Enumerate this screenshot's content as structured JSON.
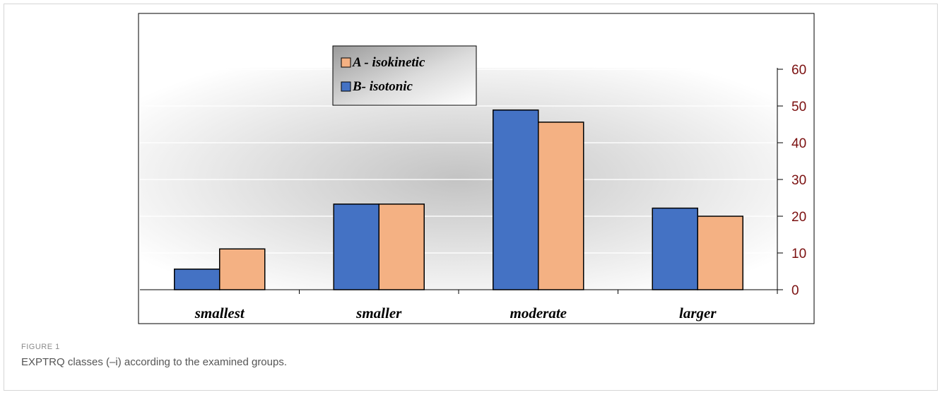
{
  "figure": {
    "label": "FIGURE 1",
    "caption": "EXPTRQ classes (–i) according to the examined groups."
  },
  "chart_data": {
    "type": "bar",
    "categories": [
      "smallest",
      "smaller",
      "moderate",
      "larger"
    ],
    "series": [
      {
        "name": "B- isotonic",
        "values": [
          5.6,
          23.3,
          48.9,
          22.2
        ],
        "color": "#4472c4"
      },
      {
        "name": "A - isokinetic",
        "values": [
          11.1,
          23.3,
          45.6,
          20.0
        ],
        "color": "#f4b183"
      }
    ],
    "legend_order": [
      "A - isokinetic",
      "B- isotonic"
    ],
    "legend_position": "top-left",
    "y_axis_side": "right",
    "ylim": [
      0,
      60
    ],
    "yticks": [
      0,
      10,
      20,
      30,
      40,
      50,
      60
    ],
    "tick_color": "#7b1010",
    "grid": true
  }
}
